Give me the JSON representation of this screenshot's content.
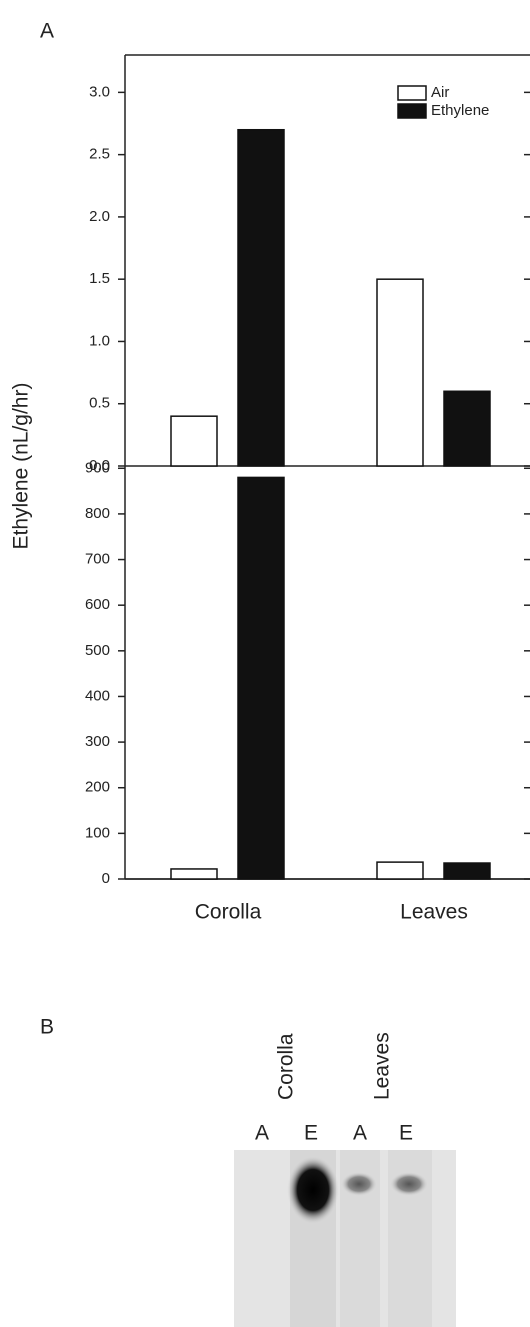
{
  "panel_a_label": "A",
  "chart_data": [
    {
      "type": "bar",
      "ylabel": "Ethylene (nL/g/hr)",
      "categories": [
        null,
        null
      ],
      "series": [
        {
          "name": "Air",
          "color": "#ffffff",
          "values": [
            0.4,
            1.5
          ]
        },
        {
          "name": "Ethylene",
          "color": "#111111",
          "values": [
            2.7,
            0.6
          ]
        }
      ],
      "ylim": [
        0,
        3.3
      ],
      "yticks": [
        {
          "value": 0,
          "label": "0.0"
        },
        0.5,
        {
          "value": 1,
          "label": "1.0"
        },
        1.5,
        {
          "value": 2,
          "label": "2.0"
        },
        2.5,
        {
          "value": 3,
          "label": "3.0"
        }
      ],
      "legend": "upper right"
    },
    {
      "type": "bar",
      "categories": [
        "Corolla",
        "Leaves"
      ],
      "series": [
        {
          "color": "#ffffff",
          "values": [
            22,
            37
          ]
        },
        {
          "color": "#111111",
          "values": [
            880,
            35
          ]
        }
      ],
      "ylim": [
        0,
        905
      ],
      "yticks": [
        0,
        100,
        200,
        300,
        400,
        500,
        600,
        700,
        800,
        900
      ]
    }
  ],
  "panel_b": {
    "label": "B",
    "samples": [
      "Corolla",
      "Leaves"
    ],
    "lanes": [
      "A",
      "E",
      "A",
      "E"
    ]
  }
}
